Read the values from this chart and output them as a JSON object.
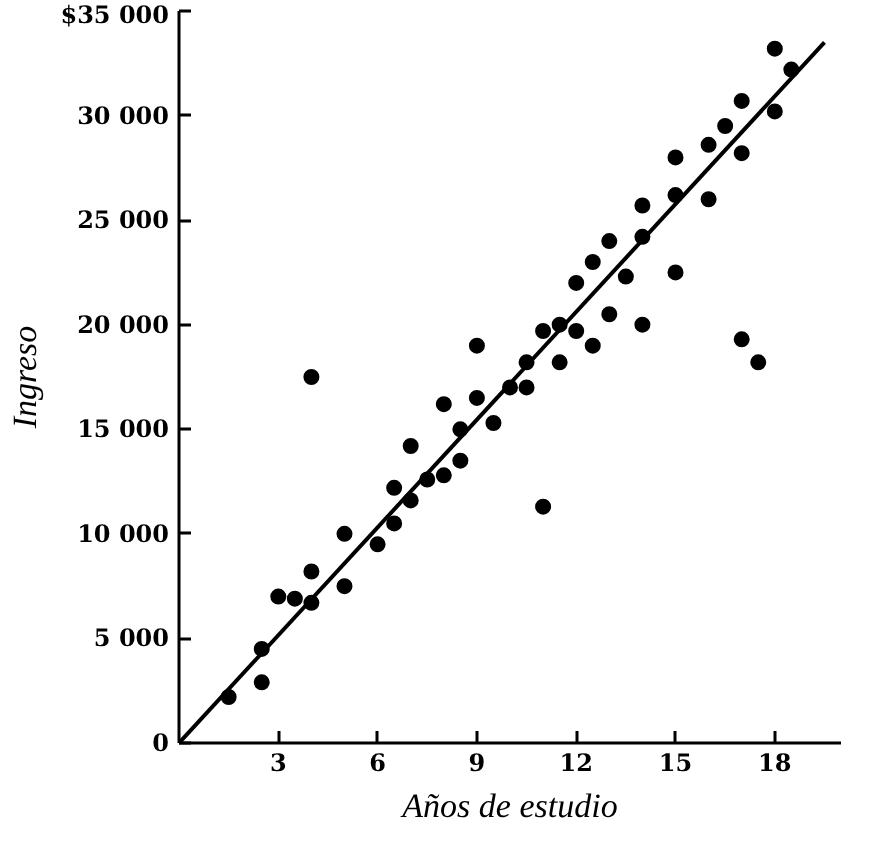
{
  "chart_data": {
    "type": "scatter",
    "xlabel": "Años de estudio",
    "ylabel": "Ingreso",
    "xlim": [
      0,
      20
    ],
    "ylim": [
      0,
      35000
    ],
    "xticks": [
      3,
      6,
      9,
      12,
      15,
      18
    ],
    "yticks": [
      {
        "value": 0,
        "label": "0"
      },
      {
        "value": 5000,
        "label": "5 000"
      },
      {
        "value": 10000,
        "label": "10 000"
      },
      {
        "value": 15000,
        "label": "15 000"
      },
      {
        "value": 20000,
        "label": "20 000"
      },
      {
        "value": 25000,
        "label": "25 000"
      },
      {
        "value": 30000,
        "label": "30 000"
      },
      {
        "value": 35000,
        "label": "$35 000"
      }
    ],
    "grid": false,
    "marker": "circle",
    "series": [
      {
        "color": "#000000",
        "x": [
          1.5,
          2.5,
          2.5,
          3,
          3.5,
          4,
          4,
          4,
          5,
          5,
          6,
          6.5,
          6.5,
          7,
          7,
          7.5,
          8,
          8,
          8.5,
          8.5,
          9,
          9,
          9.5,
          10,
          10.5,
          10.5,
          11,
          11,
          11.5,
          11.5,
          12,
          12,
          12.5,
          12.5,
          13,
          13,
          13.5,
          14,
          14,
          14,
          15,
          15,
          15,
          16,
          16,
          16.5,
          17,
          17,
          17,
          17.5,
          18,
          18,
          18.5
        ],
        "values": [
          2200,
          2900,
          4500,
          7000,
          6900,
          6700,
          8200,
          17500,
          7500,
          10000,
          9500,
          10500,
          12200,
          14200,
          11600,
          12600,
          12800,
          16200,
          13500,
          15000,
          16500,
          19000,
          15300,
          17000,
          17000,
          18200,
          19700,
          11300,
          18200,
          20000,
          19700,
          22000,
          19000,
          23000,
          20500,
          24000,
          22300,
          20000,
          24200,
          25700,
          22500,
          26200,
          28000,
          26000,
          28600,
          29500,
          28200,
          30700,
          19300,
          18200,
          30200,
          33200,
          32200
        ]
      },
      {
        "type": "line",
        "color": "#000000",
        "x": [
          0,
          19.5
        ],
        "values": [
          0,
          33500
        ],
        "marker": "none"
      }
    ]
  }
}
